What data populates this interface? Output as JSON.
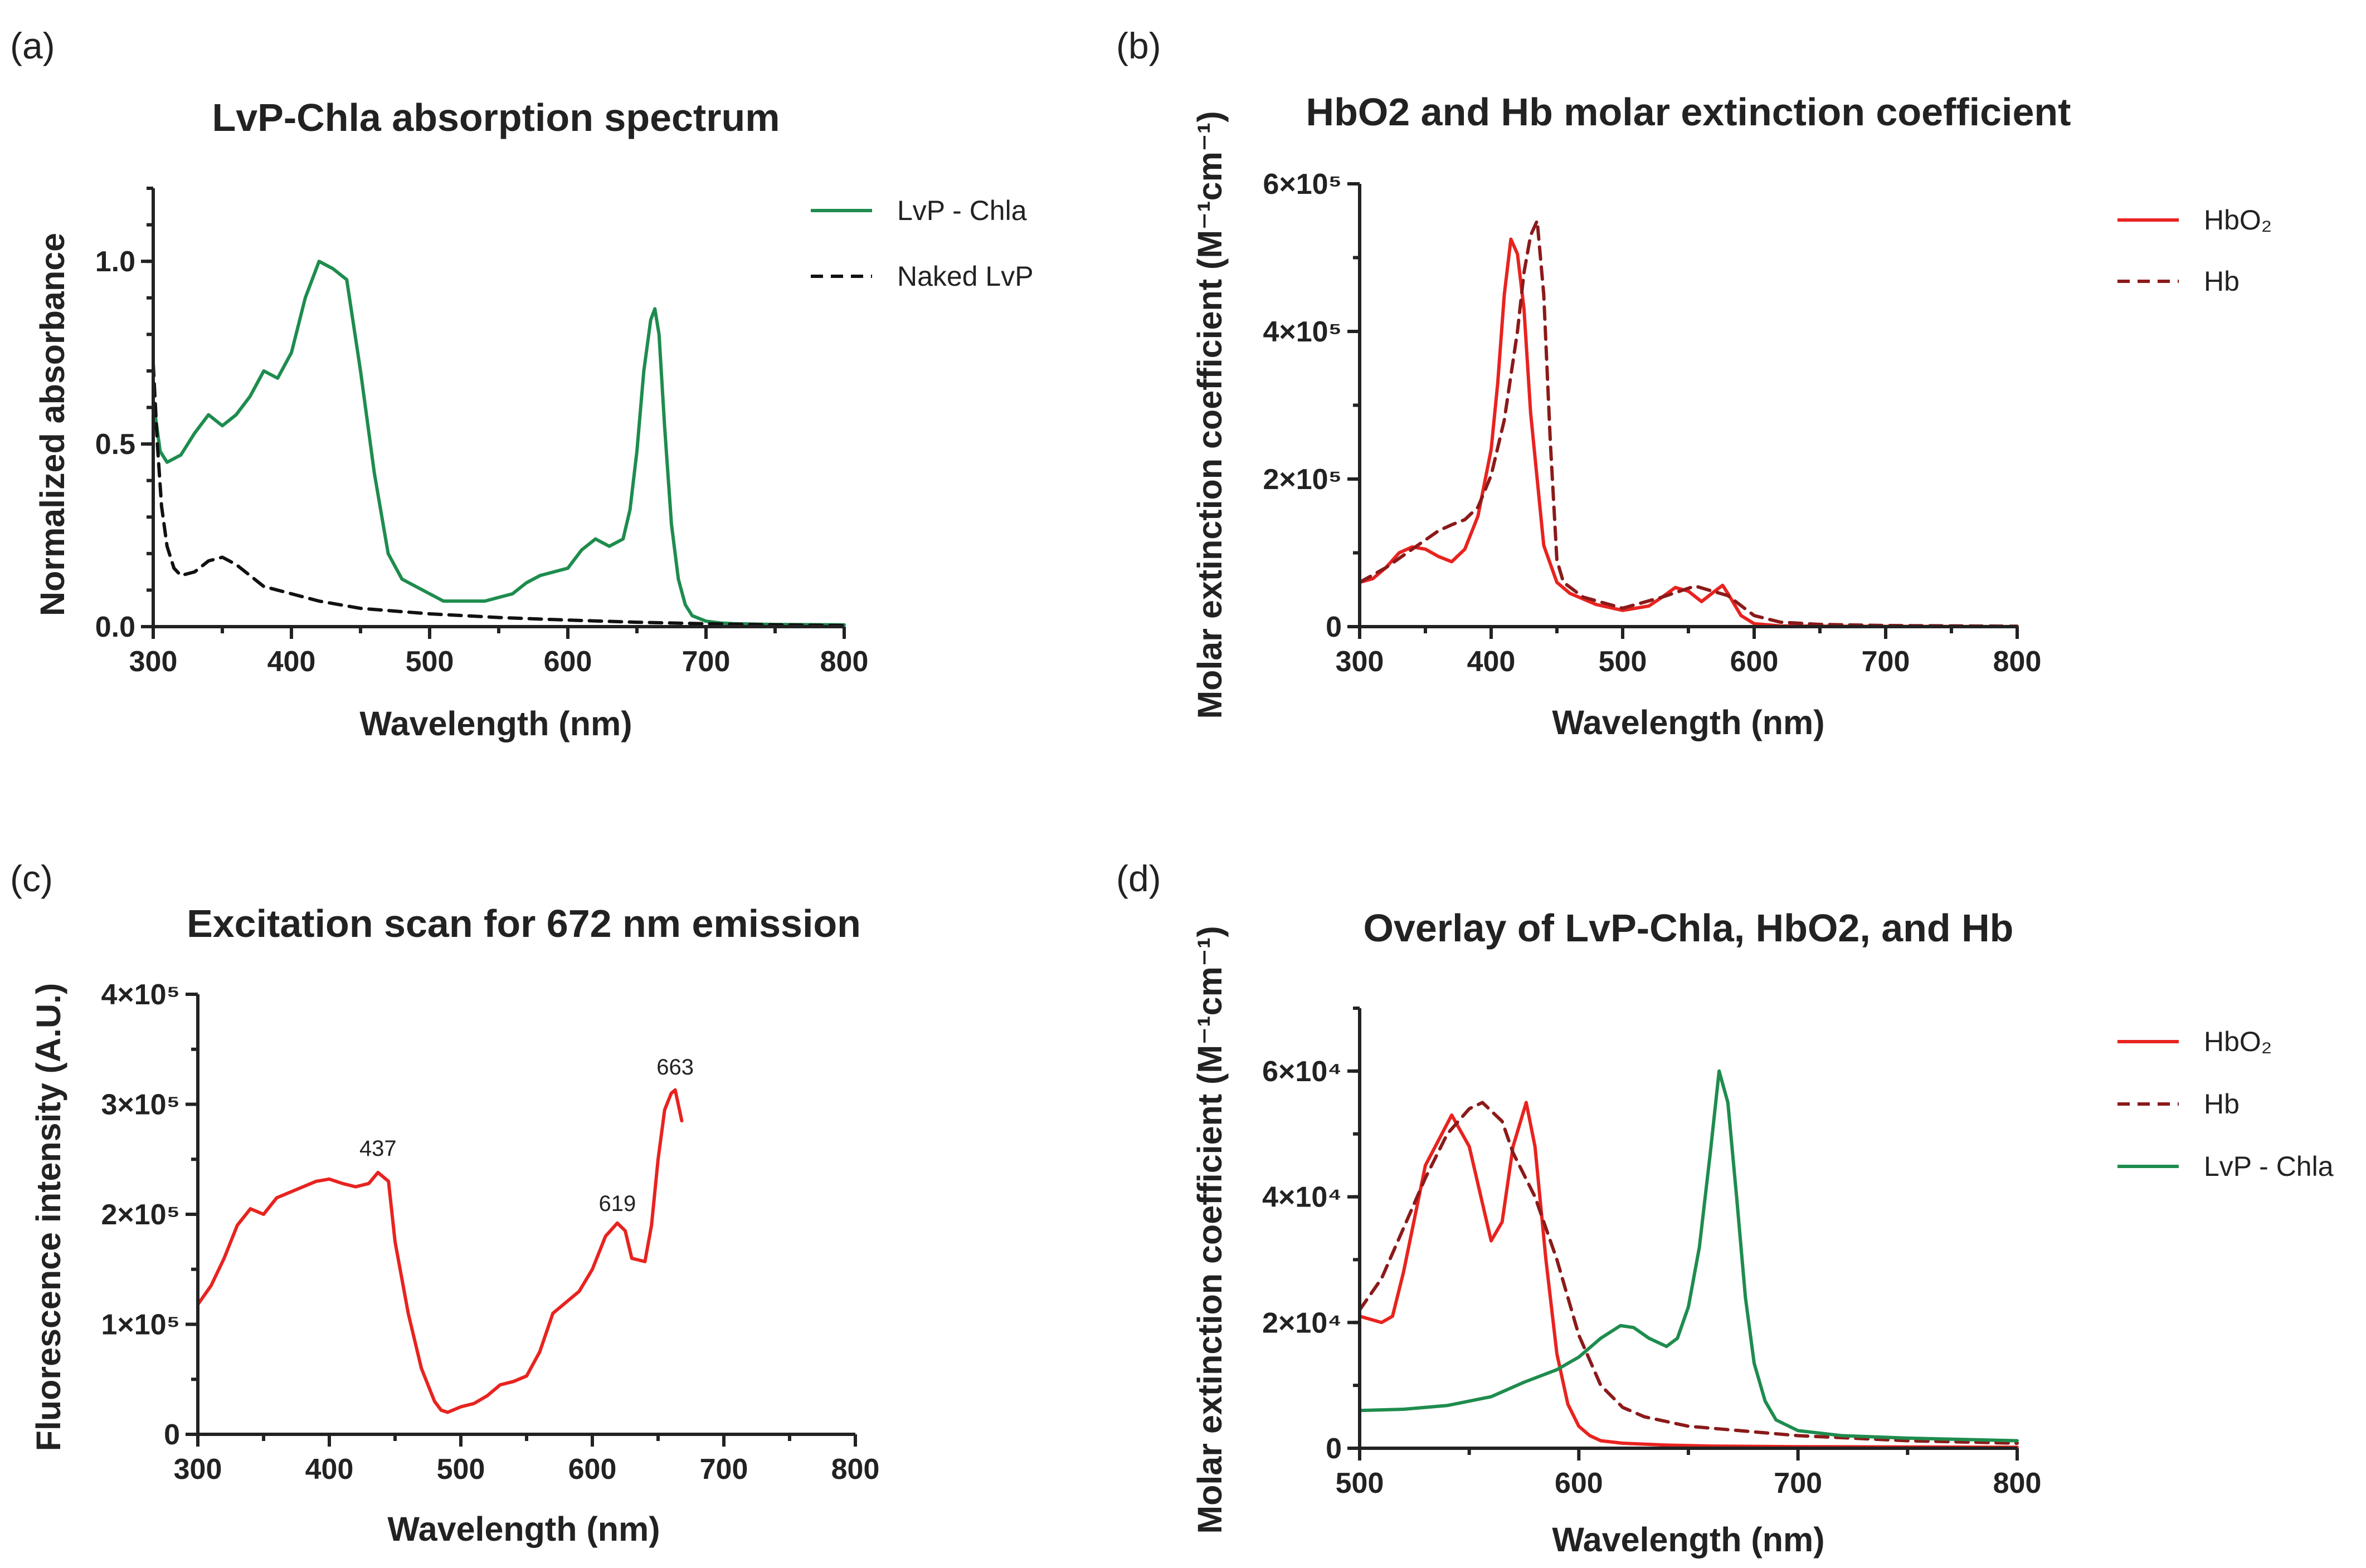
{
  "chart_data": [
    {
      "panel": "(a)",
      "type": "line",
      "title": "LvP-Chla absorption spectrum",
      "xlabel": "Wavelength (nm)",
      "ylabel": "Normalized absorbance",
      "xlim": [
        300,
        800
      ],
      "ylim": [
        0,
        1.2
      ],
      "xticks": [
        300,
        400,
        500,
        600,
        700,
        800
      ],
      "xtick_labels": [
        "300",
        "400",
        "500",
        "600",
        "700",
        "800"
      ],
      "yticks": [
        0,
        0.5,
        1.0
      ],
      "ytick_labels": [
        "0.0",
        "0.5",
        "1.0"
      ],
      "grid": false,
      "legend": "top-right",
      "series": [
        {
          "name": "LvP - Chla",
          "color": "#1e8c4e",
          "dash": "solid",
          "x": [
            300,
            305,
            310,
            320,
            330,
            340,
            350,
            360,
            370,
            380,
            390,
            400,
            410,
            420,
            430,
            440,
            450,
            460,
            470,
            480,
            490,
            500,
            510,
            520,
            540,
            560,
            570,
            580,
            590,
            600,
            610,
            620,
            630,
            640,
            645,
            650,
            655,
            660,
            663,
            666,
            670,
            675,
            680,
            685,
            690,
            700,
            710,
            720,
            750,
            800
          ],
          "y": [
            0.62,
            0.48,
            0.45,
            0.47,
            0.53,
            0.58,
            0.55,
            0.58,
            0.63,
            0.7,
            0.68,
            0.75,
            0.9,
            1.0,
            0.98,
            0.95,
            0.7,
            0.42,
            0.2,
            0.13,
            0.11,
            0.09,
            0.07,
            0.07,
            0.07,
            0.09,
            0.12,
            0.14,
            0.15,
            0.16,
            0.21,
            0.24,
            0.22,
            0.24,
            0.32,
            0.48,
            0.7,
            0.84,
            0.87,
            0.8,
            0.55,
            0.28,
            0.13,
            0.06,
            0.03,
            0.015,
            0.01,
            0.008,
            0.006,
            0.005
          ]
        },
        {
          "name": "Naked LvP",
          "color": "#111111",
          "dash": "dashed",
          "x": [
            300,
            303,
            306,
            310,
            315,
            320,
            330,
            340,
            350,
            360,
            370,
            380,
            400,
            420,
            450,
            500,
            550,
            600,
            650,
            700,
            750,
            800
          ],
          "y": [
            0.72,
            0.5,
            0.33,
            0.22,
            0.16,
            0.14,
            0.15,
            0.18,
            0.19,
            0.17,
            0.14,
            0.11,
            0.09,
            0.07,
            0.05,
            0.035,
            0.025,
            0.018,
            0.012,
            0.008,
            0.005,
            0.003
          ]
        }
      ]
    },
    {
      "panel": "(b)",
      "type": "line",
      "title": "HbO2 and Hb molar extinction coefficient",
      "xlabel": "Wavelength (nm)",
      "ylabel": "Molar extinction coefficient (M⁻¹cm⁻¹)",
      "xlim": [
        300,
        800
      ],
      "ylim": [
        0,
        600000
      ],
      "xticks": [
        300,
        400,
        500,
        600,
        700,
        800
      ],
      "xtick_labels": [
        "300",
        "400",
        "500",
        "600",
        "700",
        "800"
      ],
      "yticks": [
        0,
        200000,
        400000,
        600000
      ],
      "ytick_labels": [
        "0",
        "2×10⁵",
        "4×10⁵",
        "6×10⁵"
      ],
      "grid": false,
      "legend": "top-right",
      "series": [
        {
          "name": "HbO₂",
          "color": "#e8231f",
          "dash": "solid",
          "x": [
            300,
            310,
            320,
            330,
            340,
            350,
            360,
            370,
            380,
            390,
            400,
            405,
            410,
            415,
            420,
            425,
            430,
            440,
            450,
            460,
            480,
            500,
            520,
            530,
            540,
            550,
            560,
            570,
            576,
            580,
            590,
            600,
            620,
            650,
            700,
            800
          ],
          "y": [
            60000,
            65000,
            80000,
            100000,
            108000,
            105000,
            95000,
            88000,
            105000,
            150000,
            240000,
            330000,
            450000,
            525000,
            505000,
            430000,
            290000,
            110000,
            60000,
            45000,
            30000,
            22000,
            28000,
            40000,
            53000,
            48000,
            34000,
            48000,
            56000,
            45000,
            15000,
            4000,
            1000,
            600,
            300,
            100
          ]
        },
        {
          "name": "Hb",
          "color": "#8b1a1a",
          "dash": "dashed",
          "x": [
            300,
            320,
            340,
            360,
            370,
            380,
            390,
            400,
            410,
            420,
            425,
            430,
            435,
            440,
            445,
            450,
            455,
            470,
            500,
            530,
            555,
            580,
            600,
            620,
            650,
            700,
            800
          ],
          "y": [
            60000,
            80000,
            105000,
            130000,
            138000,
            145000,
            162000,
            205000,
            280000,
            400000,
            480000,
            530000,
            550000,
            450000,
            250000,
            90000,
            60000,
            40000,
            25000,
            40000,
            55000,
            42000,
            15000,
            6000,
            3000,
            1500,
            500
          ]
        }
      ]
    },
    {
      "panel": "(c)",
      "type": "line",
      "title": "Excitation scan for 672 nm emission",
      "xlabel": "Wavelength (nm)",
      "ylabel": "Fluorescence intensity (A.U.)",
      "xlim": [
        300,
        800
      ],
      "ylim": [
        0,
        400000
      ],
      "xticks": [
        300,
        400,
        500,
        600,
        700,
        800
      ],
      "xtick_labels": [
        "300",
        "400",
        "500",
        "600",
        "700",
        "800"
      ],
      "yticks": [
        0,
        100000,
        200000,
        300000,
        400000
      ],
      "ytick_labels": [
        "0",
        "1×10⁵",
        "2×10⁵",
        "3×10⁵",
        "4×10⁵"
      ],
      "grid": false,
      "legend": "none",
      "annotations": [
        {
          "label": "437",
          "x": 437,
          "y": 244000
        },
        {
          "label": "619",
          "x": 619,
          "y": 194000
        },
        {
          "label": "663",
          "x": 663,
          "y": 318000
        }
      ],
      "series": [
        {
          "name": "",
          "color": "#e8231f",
          "dash": "solid",
          "x": [
            300,
            310,
            320,
            330,
            340,
            350,
            360,
            370,
            380,
            390,
            400,
            410,
            420,
            430,
            437,
            445,
            450,
            460,
            470,
            480,
            485,
            490,
            500,
            510,
            520,
            530,
            540,
            550,
            560,
            570,
            580,
            590,
            600,
            610,
            619,
            625,
            630,
            640,
            645,
            650,
            655,
            660,
            663,
            668
          ],
          "y": [
            118000,
            135000,
            160000,
            190000,
            205000,
            200000,
            215000,
            220000,
            225000,
            230000,
            232000,
            228000,
            225000,
            228000,
            238000,
            230000,
            175000,
            110000,
            60000,
            30000,
            22000,
            20000,
            25000,
            28000,
            35000,
            45000,
            48000,
            53000,
            75000,
            110000,
            120000,
            130000,
            150000,
            180000,
            192000,
            185000,
            160000,
            157000,
            190000,
            250000,
            295000,
            310000,
            313000,
            285000
          ]
        }
      ]
    },
    {
      "panel": "(d)",
      "type": "line",
      "title": "Overlay of LvP-Chla, HbO2, and Hb",
      "xlabel": "Wavelength (nm)",
      "ylabel": "Molar extinction coefficient (M⁻¹cm⁻¹)",
      "xlim": [
        500,
        800
      ],
      "ylim": [
        0,
        70000
      ],
      "xticks": [
        500,
        600,
        700,
        800
      ],
      "xtick_labels": [
        "500",
        "600",
        "700",
        "800"
      ],
      "yticks": [
        0,
        20000,
        40000,
        60000
      ],
      "ytick_labels": [
        "0",
        "2×10⁴",
        "4×10⁴",
        "6×10⁴"
      ],
      "grid": false,
      "legend": "top-right",
      "series": [
        {
          "name": "HbO₂",
          "color": "#e8231f",
          "dash": "solid",
          "x": [
            500,
            505,
            510,
            515,
            520,
            530,
            542,
            550,
            560,
            565,
            570,
            576,
            580,
            585,
            590,
            595,
            600,
            605,
            610,
            620,
            640,
            660,
            700,
            750,
            800
          ],
          "y": [
            21000,
            20500,
            20000,
            21000,
            28000,
            45000,
            53000,
            48000,
            33000,
            36000,
            48000,
            55000,
            48000,
            30000,
            15000,
            7000,
            3500,
            2000,
            1200,
            800,
            500,
            350,
            250,
            200,
            150
          ]
        },
        {
          "name": "Hb",
          "color": "#8b1a1a",
          "dash": "dashed",
          "x": [
            500,
            510,
            520,
            530,
            540,
            550,
            556,
            565,
            570,
            580,
            590,
            600,
            610,
            620,
            630,
            650,
            700,
            750,
            800
          ],
          "y": [
            22000,
            27000,
            35000,
            43000,
            50000,
            54000,
            55000,
            52000,
            47000,
            40000,
            30000,
            18000,
            10000,
            6500,
            5000,
            3500,
            2000,
            1200,
            800
          ]
        },
        {
          "name": "LvP - Chla",
          "color": "#1e8c4e",
          "dash": "solid",
          "x": [
            500,
            520,
            540,
            560,
            575,
            590,
            600,
            610,
            619,
            625,
            632,
            640,
            645,
            650,
            655,
            660,
            664,
            668,
            672,
            676,
            680,
            685,
            690,
            700,
            720,
            750,
            800
          ],
          "y": [
            6000,
            6200,
            6800,
            8200,
            10500,
            12500,
            14500,
            17500,
            19500,
            19200,
            17500,
            16200,
            17500,
            22500,
            32000,
            47000,
            60000,
            55000,
            40000,
            24000,
            13500,
            7500,
            4500,
            2800,
            2000,
            1600,
            1200
          ]
        }
      ]
    }
  ]
}
